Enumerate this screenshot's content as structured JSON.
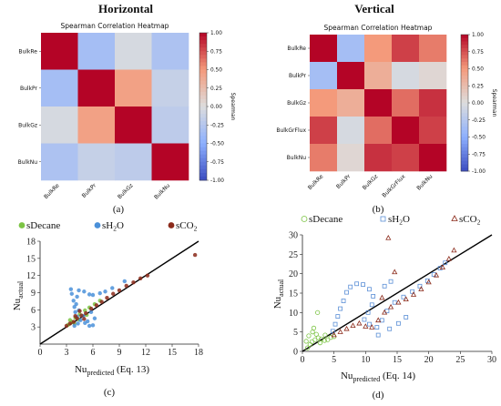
{
  "headers": {
    "left": "Horizontal",
    "right": "Vertical"
  },
  "captions": {
    "a": "(a)",
    "b": "(b)",
    "c": "(c)",
    "d": "(d)"
  },
  "chart_data": [
    {
      "id": "a",
      "type": "heatmap",
      "title": "Spearman Correlation Heatmap",
      "labels": [
        "BulkRe",
        "BulkPr",
        "BulkGz",
        "BulkNu"
      ],
      "matrix": [
        [
          1.0,
          -0.35,
          -0.05,
          -0.3
        ],
        [
          -0.35,
          1.0,
          0.45,
          -0.15
        ],
        [
          -0.05,
          0.45,
          1.0,
          -0.2
        ],
        [
          -0.3,
          -0.15,
          -0.2,
          1.0
        ]
      ],
      "colorbar": {
        "label": "Spearman",
        "ticks": [
          "1.00",
          "0.75",
          "0.50",
          "0.25",
          "0.00",
          "-0.25",
          "-0.50",
          "-0.75",
          "-1.00"
        ]
      }
    },
    {
      "id": "b",
      "type": "heatmap",
      "title": "Spearman Correlation Heatmap",
      "labels": [
        "BulkRe",
        "BulkPr",
        "BulkGz",
        "BulkGrFlux",
        "BulkNu"
      ],
      "matrix": [
        [
          1.0,
          -0.35,
          0.5,
          0.8,
          0.6
        ],
        [
          -0.35,
          1.0,
          0.35,
          -0.05,
          0.05
        ],
        [
          0.5,
          0.35,
          1.0,
          0.65,
          0.85
        ],
        [
          0.8,
          -0.05,
          0.65,
          1.0,
          0.8
        ],
        [
          0.6,
          0.05,
          0.85,
          0.8,
          1.0
        ]
      ],
      "colorbar": {
        "label": "Spearman",
        "ticks": [
          "1.00",
          "0.75",
          "0.50",
          "0.25",
          "0.00",
          "-0.25",
          "-0.50",
          "-0.75",
          "-1.00"
        ]
      }
    },
    {
      "id": "c",
      "type": "scatter",
      "xlabel_main": "Nu",
      "xlabel_sub": "predicted",
      "xlabel_note": " (Eq. 13)",
      "ylabel_main": "Nu",
      "ylabel_sub": "actual",
      "xlim": [
        0,
        18
      ],
      "ylim": [
        0,
        18
      ],
      "xticks": [
        0,
        3,
        6,
        9,
        12,
        15,
        18
      ],
      "yticks": [
        3,
        6,
        9,
        12,
        15,
        18
      ],
      "series": [
        {
          "name": "sDecane",
          "color": "#7cc444",
          "points": [
            [
              3.2,
              3.4
            ],
            [
              3.6,
              3.9
            ],
            [
              4.0,
              4.6
            ],
            [
              4.5,
              5.2
            ],
            [
              5.1,
              5.9
            ],
            [
              5.6,
              6.4
            ],
            [
              6.2,
              7.0
            ],
            [
              6.8,
              7.6
            ],
            [
              3.4,
              4.2
            ],
            [
              3.9,
              3.6
            ],
            [
              4.4,
              4.3
            ],
            [
              5.3,
              5.1
            ]
          ]
        },
        {
          "name": "sH2O",
          "color": "#4a90d9",
          "points": [
            [
              3.5,
              9.6
            ],
            [
              3.6,
              8.8
            ],
            [
              3.8,
              7.6
            ],
            [
              3.9,
              6.5
            ],
            [
              4.0,
              5.6
            ],
            [
              4.2,
              4.8
            ],
            [
              4.6,
              4.2
            ],
            [
              5.1,
              3.7
            ],
            [
              5.6,
              3.2
            ],
            [
              6.0,
              3.3
            ],
            [
              5.4,
              4.0
            ],
            [
              4.9,
              4.9
            ],
            [
              4.4,
              5.9
            ],
            [
              4.1,
              7.0
            ],
            [
              4.2,
              8.3
            ],
            [
              4.4,
              9.4
            ],
            [
              5.0,
              9.2
            ],
            [
              5.6,
              8.7
            ],
            [
              6.0,
              8.6
            ],
            [
              6.8,
              8.9
            ],
            [
              7.4,
              9.2
            ],
            [
              8.2,
              9.8
            ],
            [
              4.3,
              3.6
            ],
            [
              3.9,
              3.2
            ],
            [
              6.2,
              4.5
            ],
            [
              5.8,
              5.6
            ],
            [
              9.6,
              11.0
            ]
          ]
        },
        {
          "name": "sCO2",
          "color": "#8b2a1a",
          "points": [
            [
              3.0,
              3.2
            ],
            [
              3.4,
              3.6
            ],
            [
              3.8,
              3.9
            ],
            [
              4.2,
              4.5
            ],
            [
              4.7,
              5.0
            ],
            [
              5.2,
              5.4
            ],
            [
              5.8,
              6.2
            ],
            [
              6.4,
              6.8
            ],
            [
              7.0,
              7.4
            ],
            [
              7.6,
              8.1
            ],
            [
              8.3,
              8.8
            ],
            [
              9.0,
              9.4
            ],
            [
              9.8,
              10.2
            ],
            [
              10.6,
              10.8
            ],
            [
              11.4,
              11.5
            ],
            [
              12.2,
              12.0
            ],
            [
              17.6,
              15.6
            ],
            [
              4.5,
              5.8
            ],
            [
              5.0,
              4.4
            ],
            [
              4.0,
              4.9
            ]
          ]
        }
      ]
    },
    {
      "id": "d",
      "type": "scatter",
      "xlabel_main": "Nu",
      "xlabel_sub": "predicted",
      "xlabel_note": " (Eq. 14)",
      "ylabel_main": "Nu",
      "ylabel_sub": "actual",
      "xlim": [
        0,
        30
      ],
      "ylim": [
        0,
        30
      ],
      "xticks": [
        0,
        5,
        10,
        15,
        20,
        25,
        30
      ],
      "yticks": [
        0,
        5,
        10,
        15,
        20,
        25,
        30
      ],
      "series": [
        {
          "name": "sDecane",
          "color": "#7cc444",
          "points": [
            [
              0.8,
              0.9
            ],
            [
              1.2,
              1.8
            ],
            [
              1.5,
              2.5
            ],
            [
              2.0,
              3.0
            ],
            [
              2.5,
              3.5
            ],
            [
              3.0,
              3.2
            ],
            [
              3.5,
              2.8
            ],
            [
              4.0,
              3.0
            ],
            [
              4.5,
              3.6
            ],
            [
              1.0,
              4.0
            ],
            [
              1.6,
              5.0
            ],
            [
              2.2,
              4.4
            ],
            [
              2.8,
              2.2
            ],
            [
              0.6,
              2.6
            ],
            [
              1.8,
              6.0
            ],
            [
              2.4,
              10.0
            ],
            [
              3.6,
              4.2
            ],
            [
              5.0,
              3.8
            ]
          ]
        },
        {
          "name": "sH2O",
          "color": "#5b8fd6",
          "points": [
            [
              4.8,
              5.2
            ],
            [
              5.2,
              7.0
            ],
            [
              5.6,
              9.0
            ],
            [
              6.0,
              11.0
            ],
            [
              6.5,
              13.0
            ],
            [
              7.0,
              15.2
            ],
            [
              7.6,
              16.6
            ],
            [
              8.6,
              17.4
            ],
            [
              9.6,
              17.2
            ],
            [
              10.6,
              16.0
            ],
            [
              11.2,
              14.2
            ],
            [
              11.0,
              12.0
            ],
            [
              10.4,
              10.0
            ],
            [
              9.8,
              8.2
            ],
            [
              10.6,
              7.0
            ],
            [
              11.8,
              6.2
            ],
            [
              12.6,
              8.0
            ],
            [
              13.4,
              10.4
            ],
            [
              14.6,
              12.6
            ],
            [
              16.0,
              14.0
            ],
            [
              17.4,
              15.4
            ],
            [
              18.6,
              16.8
            ],
            [
              19.8,
              18.2
            ],
            [
              20.8,
              19.8
            ],
            [
              21.8,
              21.4
            ],
            [
              22.6,
              22.8
            ],
            [
              13.0,
              16.8
            ],
            [
              14.0,
              18.0
            ],
            [
              12.0,
              4.2
            ],
            [
              13.8,
              5.8
            ],
            [
              15.2,
              7.2
            ],
            [
              16.4,
              8.8
            ]
          ]
        },
        {
          "name": "sCO2",
          "color": "#8b2a1a",
          "points": [
            [
              5.0,
              4.2
            ],
            [
              6.0,
              5.0
            ],
            [
              7.0,
              5.8
            ],
            [
              8.0,
              6.6
            ],
            [
              9.0,
              7.2
            ],
            [
              10.0,
              6.4
            ],
            [
              11.0,
              6.2
            ],
            [
              12.0,
              8.0
            ],
            [
              13.0,
              10.0
            ],
            [
              14.0,
              11.4
            ],
            [
              15.2,
              12.6
            ],
            [
              16.4,
              13.4
            ],
            [
              17.6,
              14.6
            ],
            [
              18.8,
              16.0
            ],
            [
              20.0,
              17.8
            ],
            [
              21.2,
              19.6
            ],
            [
              22.2,
              21.6
            ],
            [
              23.2,
              23.8
            ],
            [
              24.0,
              26.0
            ],
            [
              13.6,
              29.2
            ],
            [
              14.6,
              20.4
            ],
            [
              12.6,
              13.8
            ]
          ]
        }
      ],
      "marker_style": "hollow"
    }
  ]
}
